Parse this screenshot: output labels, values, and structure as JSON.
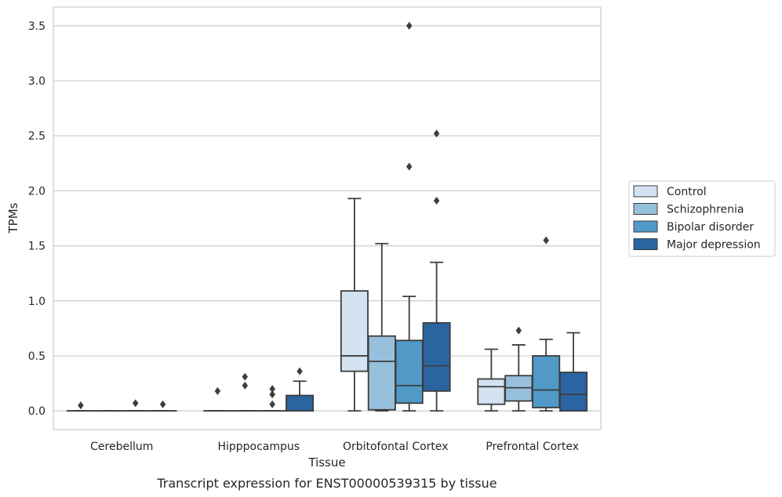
{
  "caption": "Transcript expression for ENST00000539315 by tissue",
  "chart_data": {
    "type": "box",
    "xlabel": "Tissue",
    "ylabel": "TPMs",
    "ylim": [
      -0.17,
      3.67
    ],
    "yticks": [
      0.0,
      0.5,
      1.0,
      1.5,
      2.0,
      2.5,
      3.0,
      3.5
    ],
    "ytick_labels": [
      "0.0",
      "0.5",
      "1.0",
      "1.5",
      "2.0",
      "2.5",
      "3.0",
      "3.5"
    ],
    "grid": "horizontal",
    "legend_position": "outside-right",
    "categories": [
      "Cerebellum",
      "Hipppocampus",
      "Orbitofontal Cortex",
      "Prefrontal Cortex"
    ],
    "series": [
      {
        "name": "Control",
        "color": "#d4e3f2",
        "boxes": [
          {
            "min": 0.0,
            "q1": 0.0,
            "median": 0.0,
            "q3": 0.0,
            "max": 0.0,
            "outliers": [
              0.05
            ]
          },
          {
            "min": 0.0,
            "q1": 0.0,
            "median": 0.0,
            "q3": 0.0,
            "max": 0.0,
            "outliers": [
              0.18
            ]
          },
          {
            "min": 0.0,
            "q1": 0.36,
            "median": 0.5,
            "q3": 1.09,
            "max": 1.93,
            "outliers": []
          },
          {
            "min": 0.0,
            "q1": 0.06,
            "median": 0.22,
            "q3": 0.29,
            "max": 0.56,
            "outliers": []
          }
        ]
      },
      {
        "name": "Schizophrenia",
        "color": "#97c0dd",
        "boxes": [
          {
            "min": 0.0,
            "q1": 0.0,
            "median": 0.0,
            "q3": 0.0,
            "max": 0.0,
            "outliers": []
          },
          {
            "min": 0.0,
            "q1": 0.0,
            "median": 0.0,
            "q3": 0.0,
            "max": 0.0,
            "outliers": [
              0.23,
              0.31
            ]
          },
          {
            "min": 0.0,
            "q1": 0.01,
            "median": 0.45,
            "q3": 0.68,
            "max": 1.52,
            "outliers": []
          },
          {
            "min": 0.0,
            "q1": 0.09,
            "median": 0.21,
            "q3": 0.32,
            "max": 0.6,
            "outliers": [
              0.73
            ]
          }
        ]
      },
      {
        "name": "Bipolar disorder",
        "color": "#5199c6",
        "boxes": [
          {
            "min": 0.0,
            "q1": 0.0,
            "median": 0.0,
            "q3": 0.0,
            "max": 0.0,
            "outliers": [
              0.07
            ]
          },
          {
            "min": 0.0,
            "q1": 0.0,
            "median": 0.0,
            "q3": 0.0,
            "max": 0.0,
            "outliers": [
              0.06,
              0.15,
              0.2
            ]
          },
          {
            "min": 0.0,
            "q1": 0.07,
            "median": 0.23,
            "q3": 0.64,
            "max": 1.04,
            "outliers": [
              2.22,
              3.5
            ]
          },
          {
            "min": 0.0,
            "q1": 0.03,
            "median": 0.19,
            "q3": 0.5,
            "max": 0.65,
            "outliers": [
              1.55
            ]
          }
        ]
      },
      {
        "name": "Major depression",
        "color": "#2a64a1",
        "boxes": [
          {
            "min": 0.0,
            "q1": 0.0,
            "median": 0.0,
            "q3": 0.0,
            "max": 0.0,
            "outliers": [
              0.06
            ]
          },
          {
            "min": 0.0,
            "q1": 0.0,
            "median": 0.0,
            "q3": 0.14,
            "max": 0.27,
            "outliers": [
              0.36
            ]
          },
          {
            "min": 0.0,
            "q1": 0.18,
            "median": 0.41,
            "q3": 0.8,
            "max": 1.35,
            "outliers": [
              1.91,
              2.52
            ]
          },
          {
            "min": 0.0,
            "q1": 0.0,
            "median": 0.15,
            "q3": 0.35,
            "max": 0.71,
            "outliers": []
          }
        ]
      }
    ]
  }
}
